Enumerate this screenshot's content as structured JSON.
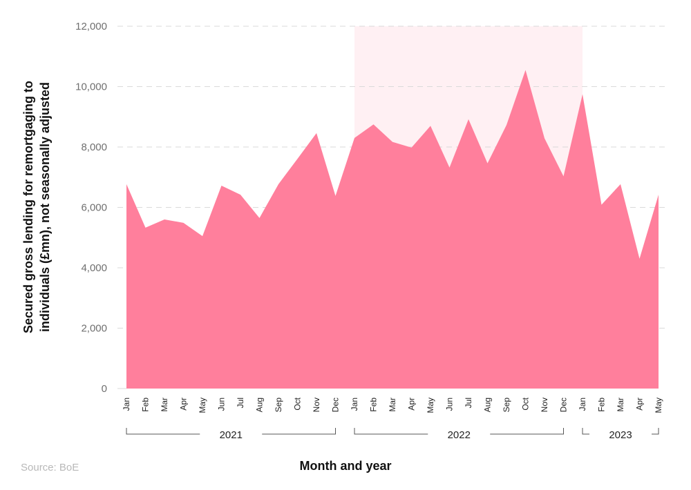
{
  "chart_data": {
    "type": "area",
    "title": "",
    "xlabel": "Month and year",
    "ylabel_lines": [
      "Secured gross lending for remortgaging to",
      "individuals (£mn), not seasonally adjusted"
    ],
    "ylim": [
      0,
      12000
    ],
    "yticks": [
      0,
      2000,
      4000,
      6000,
      8000,
      10000,
      12000
    ],
    "ytick_labels": [
      "0",
      "2,000",
      "4,000",
      "6,000",
      "8,000",
      "10,000",
      "12,000"
    ],
    "grid": "horizontal dashed",
    "categories": [
      "Jan",
      "Feb",
      "Mar",
      "Apr",
      "May",
      "Jun",
      "Jul",
      "Aug",
      "Sep",
      "Oct",
      "Nov",
      "Dec",
      "Jan",
      "Feb",
      "Mar",
      "Apr",
      "May",
      "Jun",
      "Jul",
      "Aug",
      "Sep",
      "Oct",
      "Nov",
      "Dec",
      "Jan",
      "Feb",
      "Mar",
      "Apr",
      "May"
    ],
    "years": [
      {
        "label": "2021",
        "start": 0,
        "end": 11
      },
      {
        "label": "2022",
        "start": 12,
        "end": 23
      },
      {
        "label": "2023",
        "start": 24,
        "end": 28
      }
    ],
    "values": [
      6770,
      5330,
      5600,
      5490,
      5050,
      6720,
      6420,
      5650,
      6770,
      7610,
      8460,
      6380,
      8300,
      8750,
      8170,
      7980,
      8700,
      7320,
      8920,
      7460,
      8730,
      10550,
      8290,
      7030,
      9750,
      6090,
      6770,
      4300,
      6420
    ],
    "highlight_range": [
      12,
      24
    ],
    "colors": {
      "area": "#ff7f9c",
      "highlight": "#fff0f3",
      "grid": "#d9d9d9"
    }
  },
  "source": "Source: BoE"
}
